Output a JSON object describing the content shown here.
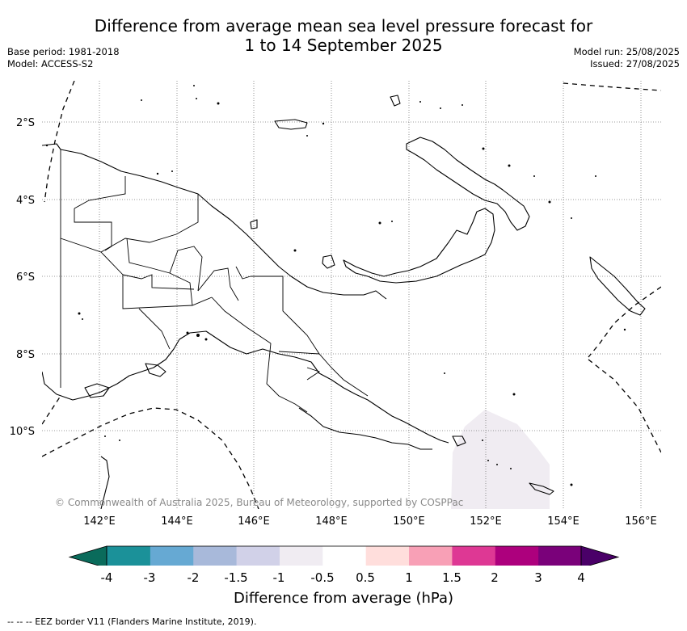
{
  "title": {
    "line1": "Difference from average mean sea level pressure forecast for",
    "line2": "1 to 14 September 2025"
  },
  "meta_left": {
    "base_period": "Base period: 1981-2018",
    "model": "Model: ACCESS-S2"
  },
  "meta_right": {
    "model_run": "Model run: 25/08/2025",
    "issued": "Issued: 27/08/2025"
  },
  "map": {
    "lat_labels": [
      "2°S",
      "4°S",
      "6°S",
      "8°S",
      "10°S"
    ],
    "lon_labels": [
      "142°E",
      "144°E",
      "146°E",
      "148°E",
      "150°E",
      "152°E",
      "154°E",
      "156°E"
    ],
    "copyright": "© Commonwealth of Australia 2025, Bureau of Meteorology, supported by COSPPac",
    "anomaly_fill_color": "#f0ecf2"
  },
  "colorbar": {
    "title": "Difference from average (hPa)",
    "labels": [
      "-4",
      "-3",
      "-2",
      "-1.5",
      "-1",
      "-0.5",
      "0.5",
      "1",
      "1.5",
      "2",
      "3",
      "4"
    ],
    "colors": [
      "#1b9199",
      "#66a9d3",
      "#a8b9da",
      "#d1d1e8",
      "#f0ecf2",
      "#ffffff",
      "#ffdedc",
      "#f8a0b6",
      "#de3894",
      "#ad007d",
      "#7a017a"
    ],
    "under_color": "#0a6b5b",
    "over_color": "#4a0068"
  },
  "footnote": "--  --  -- EEZ border V11 (Flanders Marine Institute, 2019)."
}
